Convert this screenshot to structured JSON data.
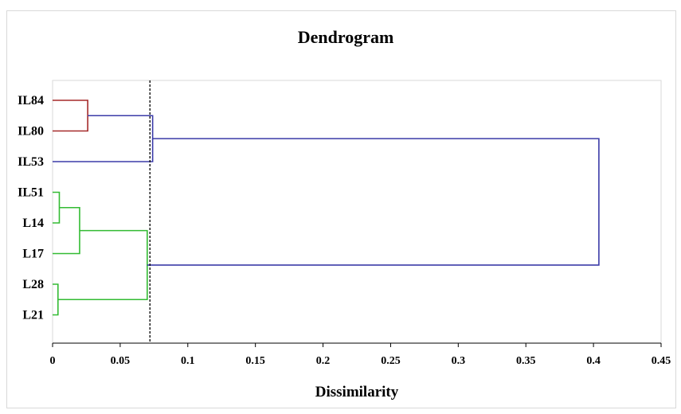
{
  "chart_data": {
    "type": "dendrogram",
    "title": "Dendrogram",
    "xlabel": "Dissimilarity",
    "xlim": [
      0,
      0.45
    ],
    "xticks": [
      0,
      0.05,
      0.1,
      0.15,
      0.2,
      0.25,
      0.3,
      0.35,
      0.4,
      0.45
    ],
    "xtick_labels": [
      "0",
      "0.05",
      "0.1",
      "0.15",
      "0.2",
      "0.25",
      "0.3",
      "0.35",
      "0.4",
      "0.45"
    ],
    "leaves": [
      "IL84",
      "IL80",
      "IL53",
      "IL51",
      "L14",
      "L17",
      "L28",
      "L21"
    ],
    "cut_line": 0.072,
    "merges": [
      {
        "a": "IL84",
        "b": "IL80",
        "height": 0.026,
        "color": "#a52a2a"
      },
      {
        "a": "IL84+IL80",
        "b": "IL53",
        "height": 0.074,
        "color": "#3b3ba8"
      },
      {
        "a": "IL51",
        "b": "L14",
        "height": 0.005,
        "color": "#33bb33"
      },
      {
        "a": "IL51+L14",
        "b": "L17",
        "height": 0.02,
        "color": "#33bb33"
      },
      {
        "a": "L28",
        "b": "L21",
        "height": 0.004,
        "color": "#33bb33"
      },
      {
        "a": "IL51+L14+L17",
        "b": "L28+L21",
        "height": 0.07,
        "color": "#33bb33"
      },
      {
        "a": "IL84+IL80+IL53",
        "b": "IL51+L14+L17+L28+L21",
        "height": 0.404,
        "color": "#3b3ba8"
      }
    ]
  }
}
